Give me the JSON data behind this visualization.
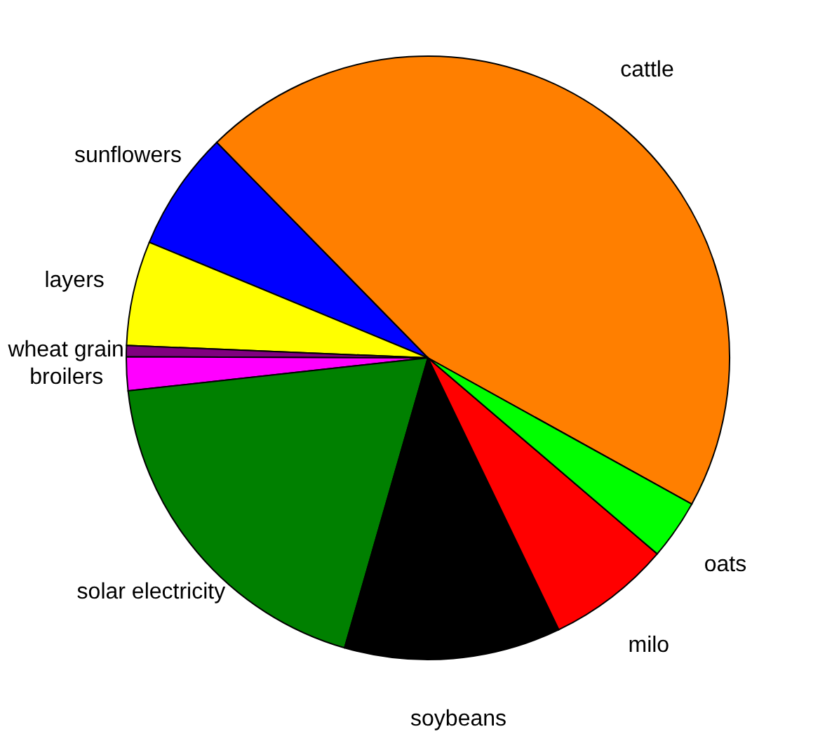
{
  "chart_data": {
    "type": "pie",
    "categories": [
      "cattle",
      "sunflowers",
      "layers",
      "wheat grain",
      "broilers",
      "solar electricity",
      "soybeans",
      "milo",
      "oats"
    ],
    "values": [
      45.4,
      6.4,
      5.6,
      0.6,
      1.8,
      18.8,
      11.6,
      6.6,
      3.2
    ],
    "colors": [
      "#ff7f00",
      "#0000ff",
      "#ffff00",
      "#800080",
      "#ff00ff",
      "#008000",
      "#000000",
      "#ff0000",
      "#00ff00"
    ],
    "legend": false
  }
}
